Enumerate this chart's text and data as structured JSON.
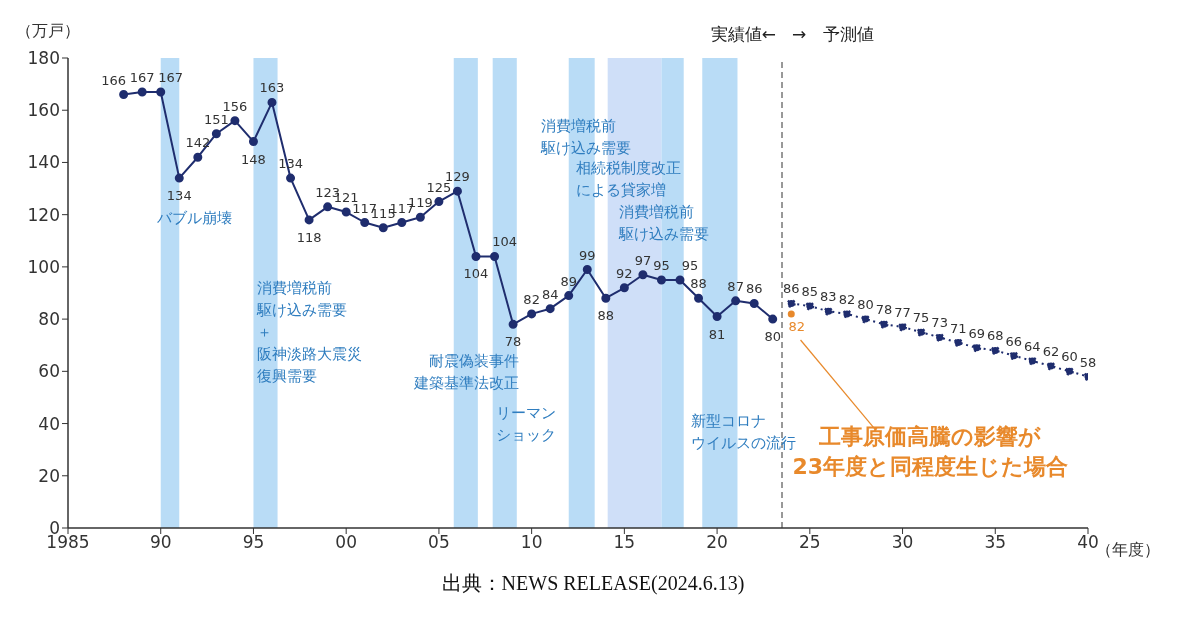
{
  "chart_data": {
    "type": "line",
    "ylabel": "（万戸）",
    "xlabel": "（年度）",
    "xlim": [
      1985,
      2040
    ],
    "xticks": [
      1985,
      {
        "value": 1990,
        "label": "90"
      },
      {
        "value": 1995,
        "label": "95"
      },
      {
        "value": 2000,
        "label": "00"
      },
      {
        "value": 2005,
        "label": "05"
      },
      {
        "value": 2010,
        "label": "10"
      },
      {
        "value": 2015,
        "label": "15"
      },
      {
        "value": 2020,
        "label": "20"
      },
      {
        "value": 2025,
        "label": "25"
      },
      {
        "value": 2030,
        "label": "30"
      },
      {
        "value": 2035,
        "label": "35"
      },
      {
        "value": 2040,
        "label": "40"
      }
    ],
    "ylim": [
      0,
      180
    ],
    "yticks": [
      0,
      20,
      40,
      60,
      80,
      100,
      120,
      140,
      160,
      180
    ],
    "grid": false,
    "data_labels": true,
    "marker": "circle",
    "series": [
      {
        "color": "#1f2d6e",
        "line_style": "solid",
        "x": [
          1988,
          1989,
          1990,
          1991,
          1992,
          1993,
          1994,
          1995,
          1996,
          1997,
          1998,
          1999,
          2000,
          2001,
          2002,
          2003,
          2004,
          2005,
          2006,
          2007,
          2008,
          2009,
          2010,
          2011,
          2012,
          2013,
          2014,
          2015,
          2016,
          2017,
          2018,
          2019,
          2020,
          2021,
          2022,
          2023
        ],
        "values": [
          166,
          167,
          167,
          134,
          142,
          151,
          156,
          148,
          163,
          134,
          118,
          123,
          121,
          117,
          115,
          117,
          119,
          125,
          129,
          104,
          104,
          78,
          82,
          84,
          89,
          99,
          88,
          92,
          97,
          95,
          95,
          88,
          81,
          87,
          86,
          80
        ]
      },
      {
        "color": "#1f2d6e",
        "line_style": "dotted",
        "x": [
          2024,
          2025,
          2026,
          2027,
          2028,
          2029,
          2030,
          2031,
          2032,
          2033,
          2034,
          2035,
          2036,
          2037,
          2038,
          2039,
          2040
        ],
        "values": [
          86,
          85,
          83,
          82,
          80,
          78,
          77,
          75,
          73,
          71,
          69,
          68,
          66,
          64,
          62,
          60,
          58
        ]
      },
      {
        "type": "scatter",
        "color": "#e8892b",
        "x": [
          2024
        ],
        "values": [
          82
        ]
      }
    ],
    "bands": [
      {
        "axis": "x",
        "from": 1990,
        "to": 1991,
        "label": "バブル崩壊",
        "color": "#b9dcf6"
      },
      {
        "axis": "x",
        "from": 1995,
        "to": 1996.3,
        "label": "消費増税前駆け込み需要＋阪神淡路大震災復興需要",
        "color": "#b9dcf6"
      },
      {
        "axis": "x",
        "from": 2005.8,
        "to": 2007.1,
        "label": "耐震偽装事件建築基準法改正",
        "color": "#b9dcf6"
      },
      {
        "axis": "x",
        "from": 2007.9,
        "to": 2009.2,
        "label": "リーマンショック",
        "color": "#b9dcf6"
      },
      {
        "axis": "x",
        "from": 2012,
        "to": 2013.4,
        "label": "消費増税前駆け込み需要",
        "color": "#b9dcf6"
      },
      {
        "axis": "x",
        "from": 2014.1,
        "to": 2017,
        "label": "相続税制度改正による貸家増",
        "color": "#cfdff8"
      },
      {
        "axis": "x",
        "from": 2017,
        "to": 2018.2,
        "label": "消費増税前駆け込み需要",
        "color": "#b9dcf6"
      },
      {
        "axis": "x",
        "from": 2019.2,
        "to": 2021.1,
        "label": "新型コロナウイルスの流行",
        "color": "#b9dcf6"
      }
    ],
    "ref_lines": [
      {
        "axis": "x",
        "value": 2023.5,
        "label": null,
        "color": "#333333",
        "line_style": "dashed"
      }
    ],
    "annotations": [
      "実績値←",
      "→　予測値",
      "工事原価高騰の影響が23年度と同程度生じた場合",
      "出典：NEWS RELEASE(2024.6.13)"
    ]
  }
}
